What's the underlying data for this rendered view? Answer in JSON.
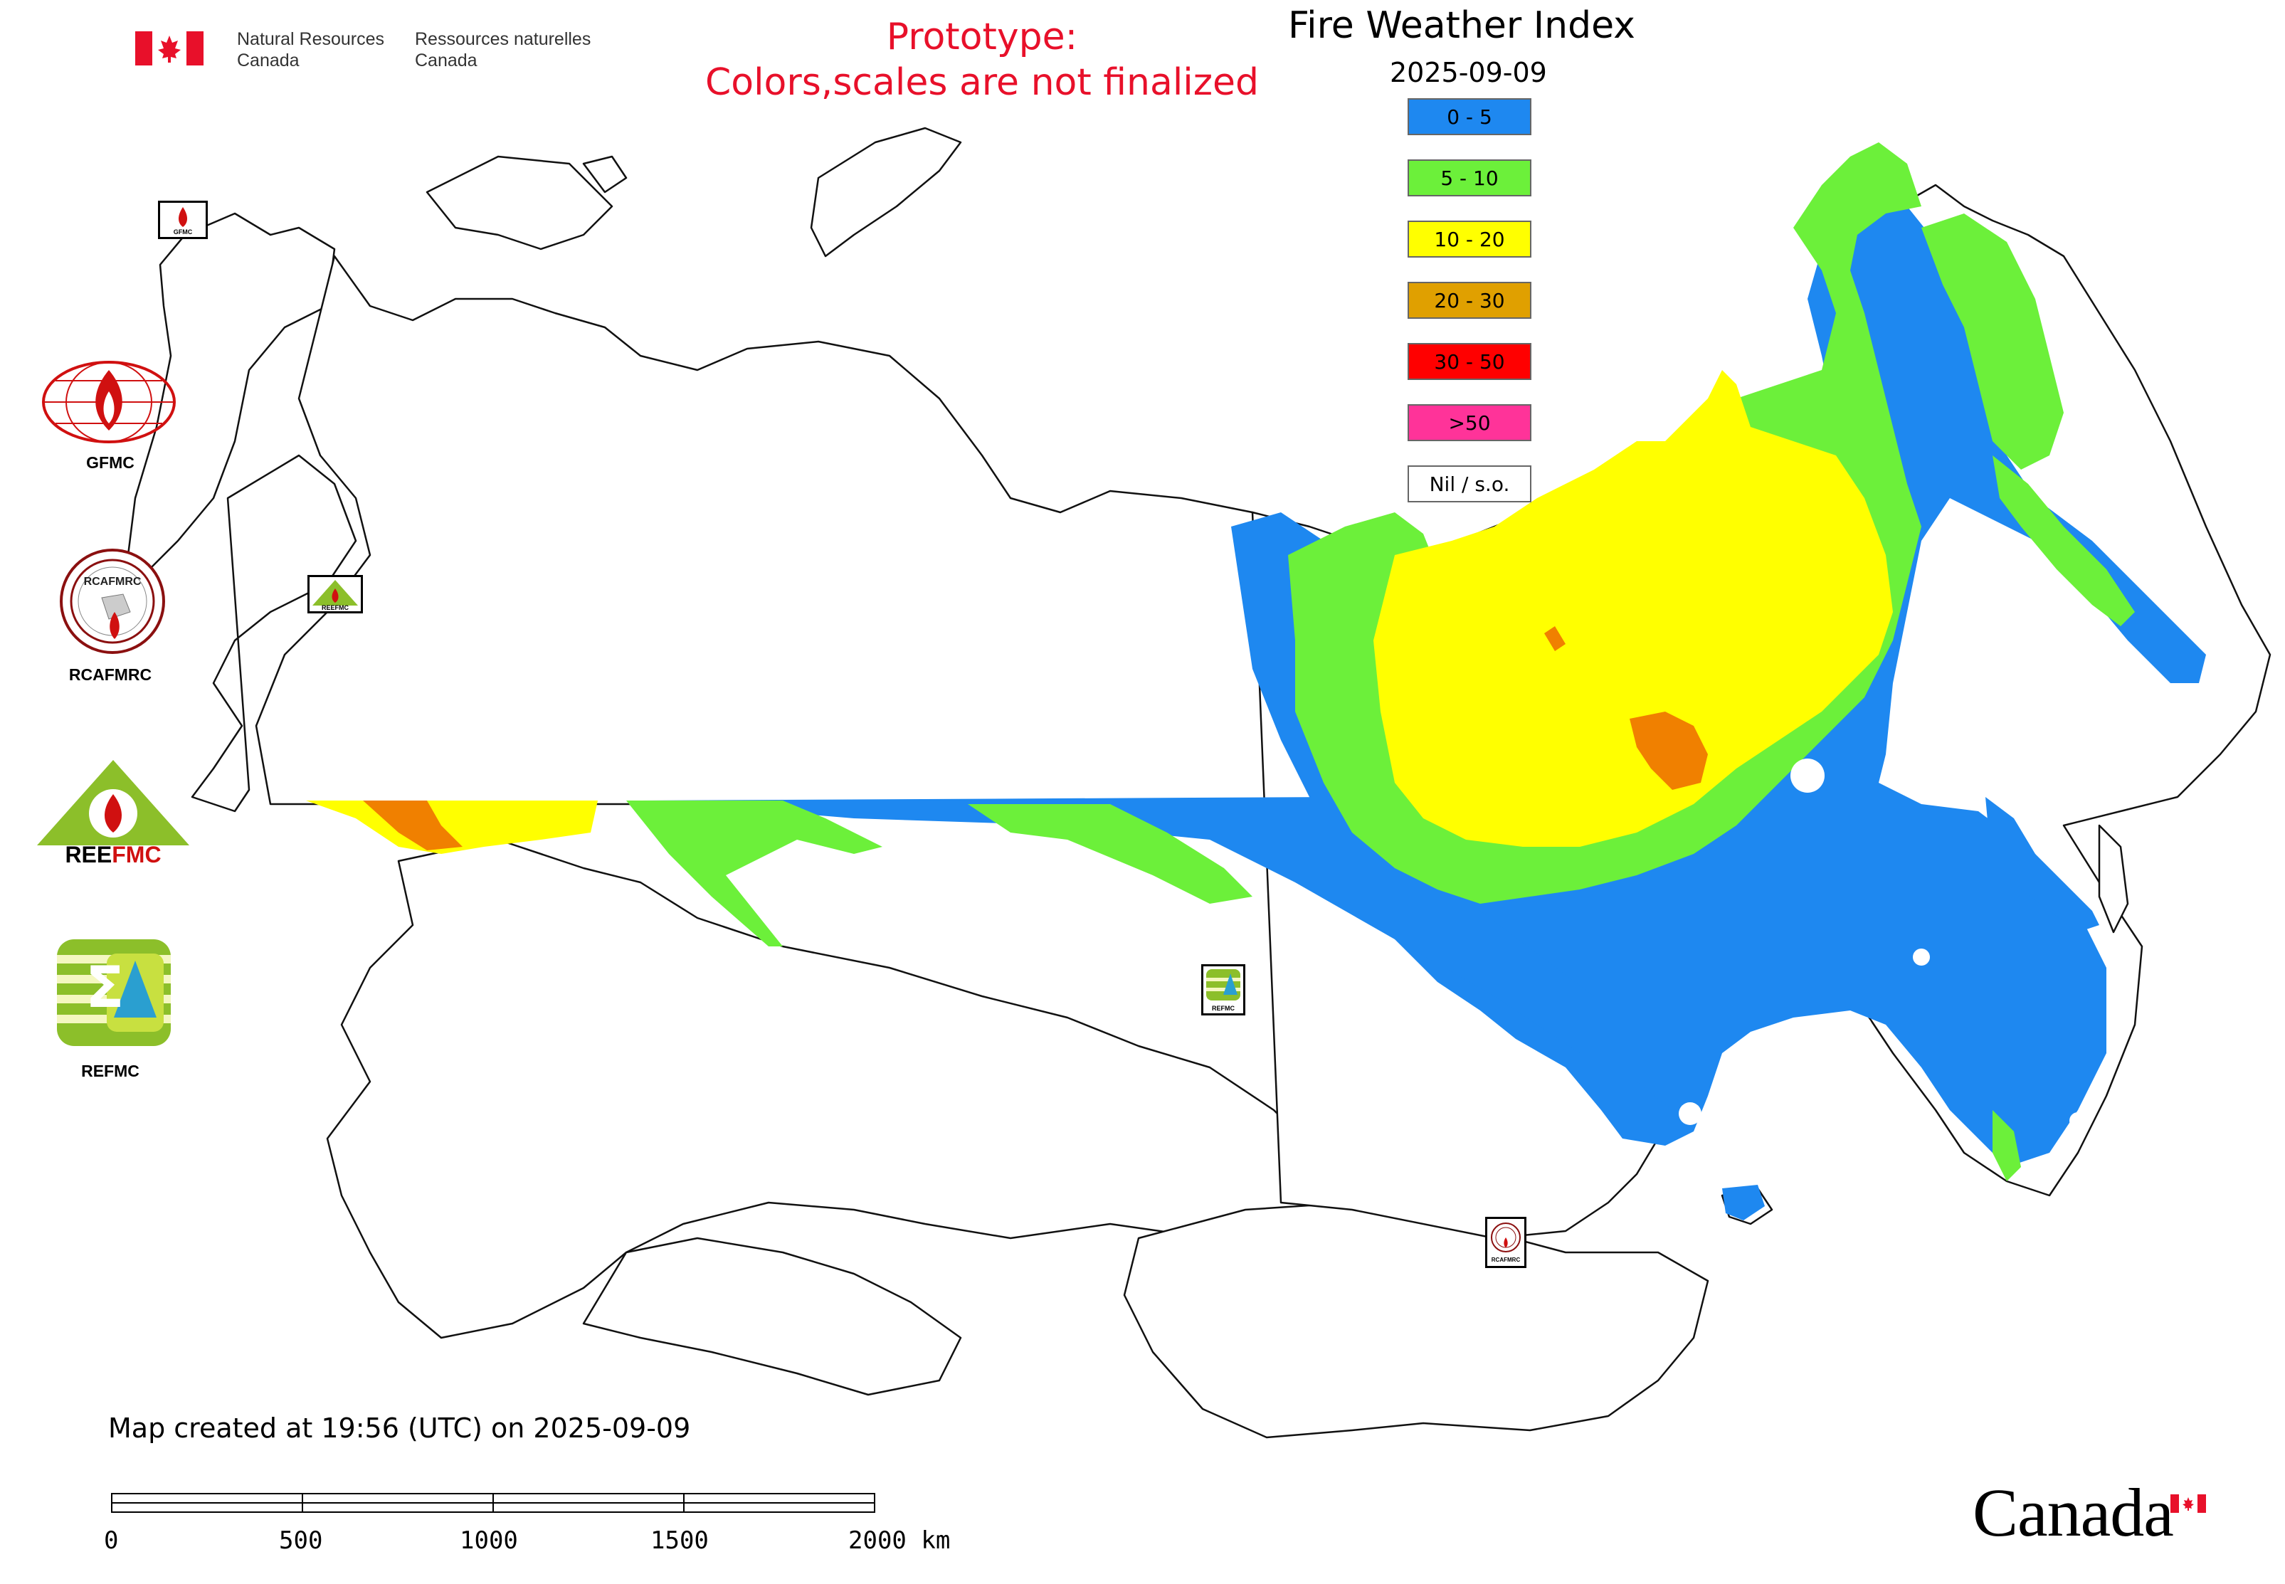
{
  "header": {
    "agency_en_line1": "Natural Resources",
    "agency_en_line2": "Canada",
    "agency_fr_line1": "Ressources naturelles",
    "agency_fr_line2": "Canada",
    "prototype_line1": "Prototype:",
    "prototype_line2": "Colors,scales are not finalized",
    "prototype_color": "#e8102a"
  },
  "map": {
    "title": "Fire Weather Index",
    "date": "2025-09-09",
    "legend": [
      {
        "label": "0 - 5",
        "color": "#1e88f0"
      },
      {
        "label": "5 - 10",
        "color": "#6cf03a"
      },
      {
        "label": "10 - 20",
        "color": "#ffff00"
      },
      {
        "label": "20 - 30",
        "color": "#e0a000"
      },
      {
        "label": "30 - 50",
        "color": "#ff0000"
      },
      {
        "label": ">50",
        "color": "#ff3399"
      },
      {
        "label": "Nil / s.o.",
        "color": "#ffffff"
      }
    ],
    "station_markers": [
      {
        "label": "GFMC"
      },
      {
        "label": "REEFMC"
      },
      {
        "label": "REFMC"
      },
      {
        "label": "RCAFMRC"
      }
    ]
  },
  "sidebar_logos": [
    {
      "label": "GFMC",
      "icon": "gfmc-logo-icon"
    },
    {
      "label": "RCAFMRC",
      "icon": "rcafmrc-logo-icon"
    },
    {
      "label": "REEFMC",
      "icon": "reefmc-logo-icon"
    },
    {
      "label": "REFMC",
      "icon": "refmc-logo-icon"
    }
  ],
  "footer": {
    "created_text": "Map created at 19:56 (UTC) on 2025-09-09",
    "scale_labels": [
      "0",
      "500",
      "1000",
      "1500",
      "2000 km"
    ],
    "wordmark": "Canada"
  }
}
